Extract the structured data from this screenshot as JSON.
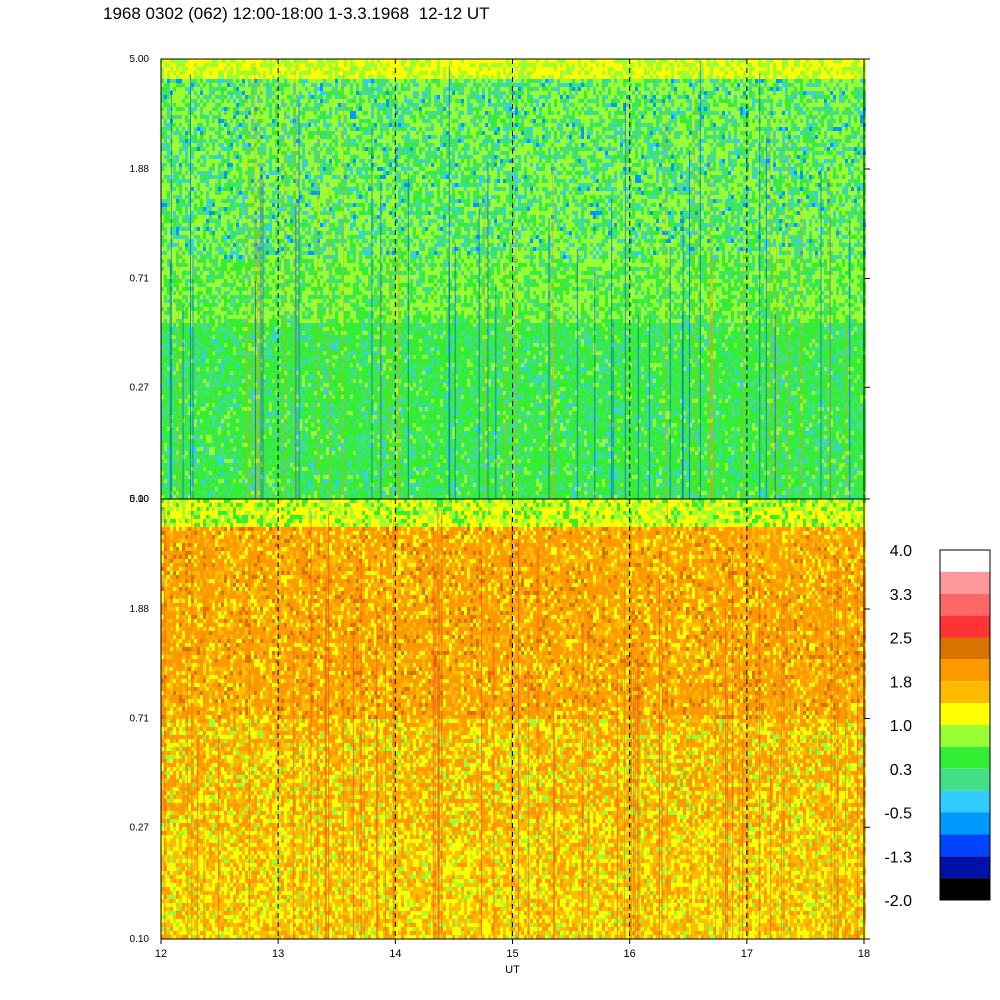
{
  "title": "1968 0302 (062) 12:00-18:00 1-3.3.1968  12-12 UT",
  "chart_data": [
    {
      "type": "heatmap",
      "panel": "top",
      "x": [
        12,
        13,
        14,
        15,
        16,
        17,
        18
      ],
      "xlim": [
        12,
        18
      ],
      "y_ticks": [
        "5.00",
        "1.88",
        "0.71",
        "0.27",
        "0.10"
      ],
      "ylim": [
        0.1,
        5.0
      ],
      "y_scale": "log",
      "vertical_dashed_lines_at": [
        13,
        14,
        15,
        16,
        17
      ],
      "dominant_levels": [
        "0.3",
        "-0.5",
        "1.0"
      ],
      "description_levels_by_band": {
        "0.10-0.27": "0.3",
        "0.27-0.71": "0.3",
        "0.71-1.88": "1.0",
        "1.88-5.00": "-0.5"
      }
    },
    {
      "type": "heatmap",
      "panel": "bottom",
      "x": [
        12,
        13,
        14,
        15,
        16,
        17,
        18
      ],
      "xlim": [
        12,
        18
      ],
      "xlabel": "UT",
      "x_ticks": [
        "12",
        "13",
        "14",
        "15",
        "16",
        "17",
        "18"
      ],
      "y_ticks": [
        "5.00",
        "1.88",
        "0.71",
        "0.27",
        "0.10"
      ],
      "ylim": [
        0.1,
        5.0
      ],
      "y_scale": "log",
      "vertical_dashed_lines_at": [
        13,
        14,
        15,
        16,
        17
      ],
      "dominant_levels": [
        "1.8",
        "1.0",
        "2.5"
      ],
      "description_levels_by_band": {
        "0.10-0.27": "1.0",
        "0.27-0.71": "1.8",
        "0.71-1.88": "1.8",
        "1.88-5.00": "1.8"
      }
    }
  ],
  "colorbar": {
    "labels": [
      "4.0",
      "3.3",
      "2.5",
      "1.8",
      "1.0",
      "0.3",
      "-0.5",
      "-1.3",
      "-2.0"
    ],
    "colors_top_to_bottom": [
      "#ffffff",
      "#ff9999",
      "#ff6666",
      "#ff3333",
      "#d97300",
      "#ff9900",
      "#ffbb00",
      "#ffff00",
      "#99ff33",
      "#33ee33",
      "#44dd88",
      "#33ccff",
      "#0099ff",
      "#0044ff",
      "#0011aa",
      "#000000"
    ]
  },
  "colors": {
    "frame": "#000000",
    "background": "#ffffff"
  }
}
